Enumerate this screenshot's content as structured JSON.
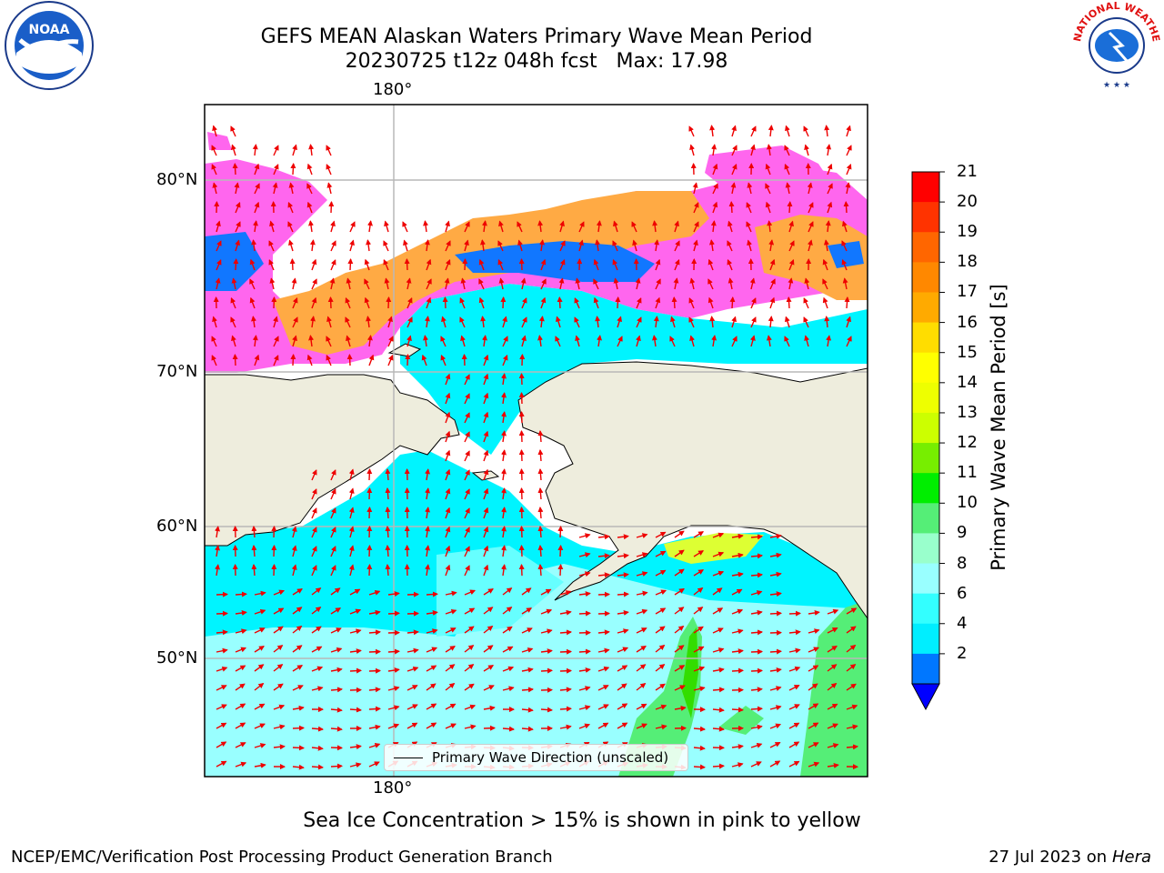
{
  "header": {
    "title_line1": "GEFS MEAN Alaskan Waters Primary Wave Mean Period",
    "title_line2": "20230725 t12z 048h fcst   Max: 17.98"
  },
  "logos": {
    "left": {
      "name": "noaa-logo",
      "text": "NOAA"
    },
    "right": {
      "name": "nws-logo",
      "text": "NATIONAL WEATHER SERVICE"
    }
  },
  "map": {
    "top_lon_label": "180°",
    "bottom_lon_label": "180°",
    "lat_labels": [
      "80°N",
      "70°N",
      "60°N",
      "50°N"
    ],
    "legend_text": "Primary Wave Direction (unscaled)",
    "colors": {
      "land": "#eeeddd",
      "ice_pink": "#ff66ee",
      "ice_orange": "#ffaa33",
      "wave_cyan": "#00ffff",
      "wave_light": "#99ffff",
      "wave_green": "#55ee77",
      "arrow": "#ee0000"
    }
  },
  "colorbar": {
    "title": "Primary Wave Mean Period [s]",
    "ticks": [
      "21",
      "20",
      "19",
      "18",
      "17",
      "16",
      "15",
      "14",
      "13",
      "12",
      "11",
      "10",
      "9",
      "8",
      "6",
      "4",
      "2"
    ],
    "colors": [
      "#ff0000",
      "#ff3300",
      "#ff6600",
      "#ff8800",
      "#ffaa00",
      "#ffdd00",
      "#ffff00",
      "#eeff00",
      "#ccff00",
      "#77ee00",
      "#00ee00",
      "#55ee77",
      "#99ffcc",
      "#99ffff",
      "#33ffff",
      "#00eeff",
      "#0077ff"
    ],
    "extend_color": "#0000ff"
  },
  "footer": {
    "note": "Sea Ice Concentration > 15% is shown in pink to yellow",
    "credit": "NCEP/EMC/Verification Post Processing Product Generation Branch",
    "date": "27 Jul 2023 on",
    "host": "Hera"
  }
}
